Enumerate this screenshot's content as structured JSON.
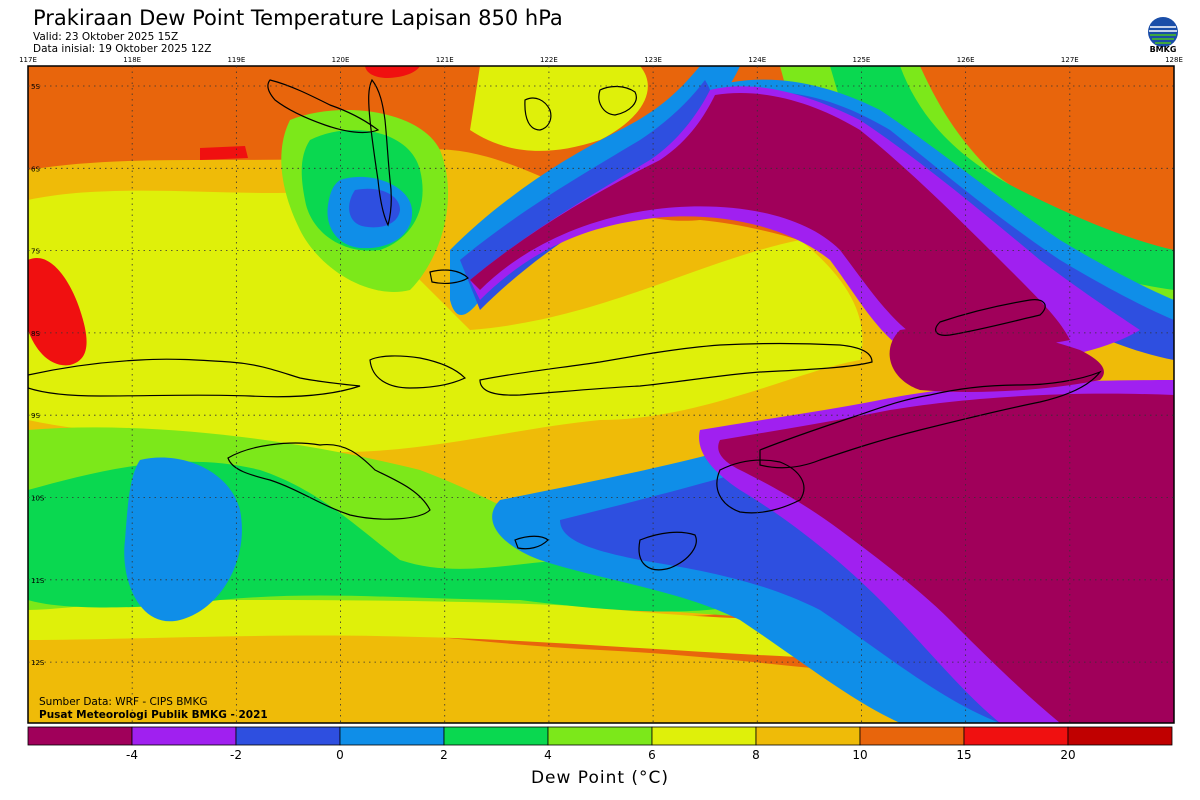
{
  "header": {
    "title": "Prakiraan Dew Point Temperature Lapisan 850 hPa",
    "valid": "Valid: 23 Oktober 2025 15Z",
    "init": "Data inisial: 19 Oktober 2025 12Z",
    "logo_text": "BMKG"
  },
  "map": {
    "lon_labels": [
      "117E",
      "118E",
      "119E",
      "120E",
      "121E",
      "122E",
      "123E",
      "124E",
      "125E",
      "126E",
      "127E",
      "128E"
    ],
    "lat_labels": [
      "5S",
      "6S",
      "7S",
      "8S",
      "9S",
      "10S",
      "11S",
      "12S"
    ],
    "background_color": "#e8650c"
  },
  "credits": {
    "source": "Sumber Data: WRF - CIPS BMKG",
    "org": "Pusat Meteorologi Publik BMKG - 2021"
  },
  "colorbar": {
    "title": "Dew Point (°C)",
    "colors": [
      "#a0005a",
      "#a020f0",
      "#2e4fe0",
      "#0f8ee8",
      "#0ad850",
      "#7ce81a",
      "#dff00a",
      "#efbb08",
      "#e8650c",
      "#f01010",
      "#c00000"
    ],
    "labels": [
      "-4",
      "-2",
      "0",
      "2",
      "4",
      "6",
      "8",
      "10",
      "15",
      "20"
    ]
  }
}
